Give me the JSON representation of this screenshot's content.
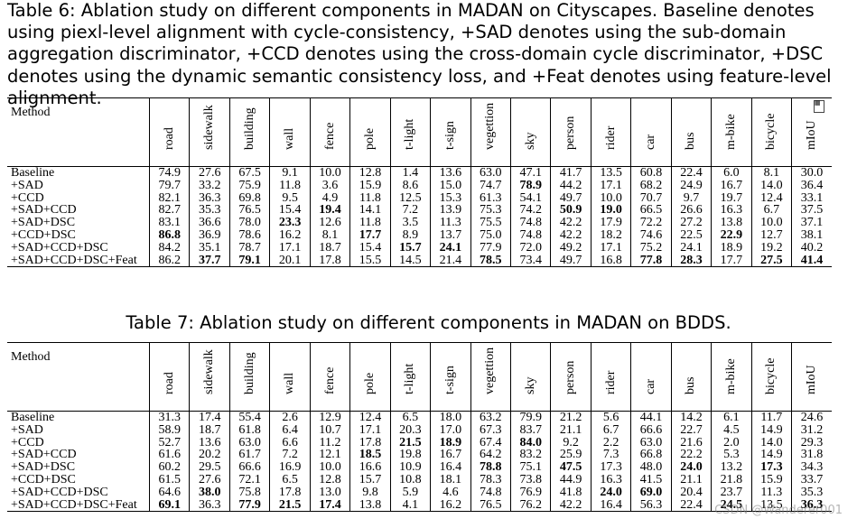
{
  "table6": {
    "caption": "Table 6: Ablation study on different components in MADAN on Cityscapes. Baseline denotes using piexl-level alignment with cycle-consistency, +SAD denotes using the sub-domain aggregation discriminator, +CCD denotes using the cross-domain cycle discriminator, +DSC denotes using the dynamic semantic consistency loss, and +Feat denotes using feature-level alignment.",
    "method_header": "Method",
    "columns": [
      "road",
      "sidewalk",
      "building",
      "wall",
      "fence",
      "pole",
      "t-light",
      "t-sign",
      "vegettion",
      "sky",
      "person",
      "rider",
      "car",
      "bus",
      "m-bike",
      "bicycle",
      "mIoU"
    ],
    "rows": [
      {
        "method": "Baseline",
        "values": [
          "74.9",
          "27.6",
          "67.5",
          "9.1",
          "10.0",
          "12.8",
          "1.4",
          "13.6",
          "63.0",
          "47.1",
          "41.7",
          "13.5",
          "60.8",
          "22.4",
          "6.0",
          "8.1",
          "30.0"
        ],
        "bold": []
      },
      {
        "method": "+SAD",
        "values": [
          "79.7",
          "33.2",
          "75.9",
          "11.8",
          "3.6",
          "15.9",
          "8.6",
          "15.0",
          "74.7",
          "78.9",
          "44.2",
          "17.1",
          "68.2",
          "24.9",
          "16.7",
          "14.0",
          "36.4"
        ],
        "bold": [
          9
        ]
      },
      {
        "method": "+CCD",
        "values": [
          "82.1",
          "36.3",
          "69.8",
          "9.5",
          "4.9",
          "11.8",
          "12.5",
          "15.3",
          "61.3",
          "54.1",
          "49.7",
          "10.0",
          "70.7",
          "9.7",
          "19.7",
          "12.4",
          "33.1"
        ],
        "bold": []
      },
      {
        "method": "+SAD+CCD",
        "values": [
          "82.7",
          "35.3",
          "76.5",
          "15.4",
          "19.4",
          "14.1",
          "7.2",
          "13.9",
          "75.3",
          "74.2",
          "50.9",
          "19.0",
          "66.5",
          "26.6",
          "16.3",
          "6.7",
          "37.5"
        ],
        "bold": [
          4,
          10,
          11
        ]
      },
      {
        "method": "+SAD+DSC",
        "values": [
          "83.1",
          "36.6",
          "78.0",
          "23.3",
          "12.6",
          "11.8",
          "3.5",
          "11.3",
          "75.5",
          "74.8",
          "42.2",
          "17.9",
          "72.2",
          "27.2",
          "13.8",
          "10.0",
          "37.1"
        ],
        "bold": [
          3
        ]
      },
      {
        "method": "+CCD+DSC",
        "values": [
          "86.8",
          "36.9",
          "78.6",
          "16.2",
          "8.1",
          "17.7",
          "8.9",
          "13.7",
          "75.0",
          "74.8",
          "42.2",
          "18.2",
          "74.6",
          "22.5",
          "22.9",
          "12.7",
          "38.1"
        ],
        "bold": [
          0,
          5,
          14
        ]
      },
      {
        "method": "+SAD+CCD+DSC",
        "values": [
          "84.2",
          "35.1",
          "78.7",
          "17.1",
          "18.7",
          "15.4",
          "15.7",
          "24.1",
          "77.9",
          "72.0",
          "49.2",
          "17.1",
          "75.2",
          "24.1",
          "18.9",
          "19.2",
          "40.2"
        ],
        "bold": [
          6,
          7
        ]
      },
      {
        "method": "+SAD+CCD+DSC+Feat",
        "values": [
          "86.2",
          "37.7",
          "79.1",
          "20.1",
          "17.8",
          "15.5",
          "14.5",
          "21.4",
          "78.5",
          "73.4",
          "49.7",
          "16.8",
          "77.8",
          "28.3",
          "17.7",
          "27.5",
          "41.4"
        ],
        "bold": [
          1,
          2,
          8,
          12,
          13,
          15,
          16
        ]
      }
    ]
  },
  "table7": {
    "caption": "Table 7: Ablation study on different components in MADAN on BDDS.",
    "method_header": "Method",
    "columns": [
      "road",
      "sidewalk",
      "building",
      "wall",
      "fence",
      "pole",
      "t-light",
      "t-sign",
      "vegettion",
      "sky",
      "person",
      "rider",
      "car",
      "bus",
      "m-bike",
      "bicycle",
      "mIoU"
    ],
    "rows": [
      {
        "method": "Baseline",
        "values": [
          "31.3",
          "17.4",
          "55.4",
          "2.6",
          "12.9",
          "12.4",
          "6.5",
          "18.0",
          "63.2",
          "79.9",
          "21.2",
          "5.6",
          "44.1",
          "14.2",
          "6.1",
          "11.7",
          "24.6"
        ],
        "bold": []
      },
      {
        "method": "+SAD",
        "values": [
          "58.9",
          "18.7",
          "61.8",
          "6.4",
          "10.7",
          "17.1",
          "20.3",
          "17.0",
          "67.3",
          "83.7",
          "21.1",
          "6.7",
          "66.6",
          "22.7",
          "4.5",
          "14.9",
          "31.2"
        ],
        "bold": []
      },
      {
        "method": "+CCD",
        "values": [
          "52.7",
          "13.6",
          "63.0",
          "6.6",
          "11.2",
          "17.8",
          "21.5",
          "18.9",
          "67.4",
          "84.0",
          "9.2",
          "2.2",
          "63.0",
          "21.6",
          "2.0",
          "14.0",
          "29.3"
        ],
        "bold": [
          6,
          7,
          9
        ]
      },
      {
        "method": "+SAD+CCD",
        "values": [
          "61.6",
          "20.2",
          "61.7",
          "7.2",
          "12.1",
          "18.5",
          "19.8",
          "16.7",
          "64.2",
          "83.2",
          "25.9",
          "7.3",
          "66.8",
          "22.2",
          "5.3",
          "14.9",
          "31.8"
        ],
        "bold": [
          5
        ]
      },
      {
        "method": "+SAD+DSC",
        "values": [
          "60.2",
          "29.5",
          "66.6",
          "16.9",
          "10.0",
          "16.6",
          "10.9",
          "16.4",
          "78.8",
          "75.1",
          "47.5",
          "17.3",
          "48.0",
          "24.0",
          "13.2",
          "17.3",
          "34.3"
        ],
        "bold": [
          8,
          10,
          13,
          15
        ]
      },
      {
        "method": "+CCD+DSC",
        "values": [
          "61.5",
          "27.6",
          "72.1",
          "6.5",
          "12.8",
          "15.7",
          "10.8",
          "18.1",
          "78.3",
          "73.8",
          "44.9",
          "16.3",
          "41.5",
          "21.1",
          "21.8",
          "15.9",
          "33.7"
        ],
        "bold": []
      },
      {
        "method": "+SAD+CCD+DSC",
        "values": [
          "64.6",
          "38.0",
          "75.8",
          "17.8",
          "13.0",
          "9.8",
          "5.9",
          "4.6",
          "74.8",
          "76.9",
          "41.8",
          "24.0",
          "69.0",
          "20.4",
          "23.7",
          "11.3",
          "35.3"
        ],
        "bold": [
          1,
          11,
          12
        ]
      },
      {
        "method": "+SAD+CCD+DSC+Feat",
        "values": [
          "69.1",
          "36.3",
          "77.9",
          "21.5",
          "17.4",
          "13.8",
          "4.1",
          "16.2",
          "76.5",
          "76.2",
          "42.2",
          "16.4",
          "56.3",
          "22.4",
          "24.5",
          "13.5",
          "36.3"
        ],
        "bold": [
          0,
          2,
          3,
          4,
          14,
          16
        ]
      }
    ]
  },
  "watermark": "CSDN @Wanderer001"
}
